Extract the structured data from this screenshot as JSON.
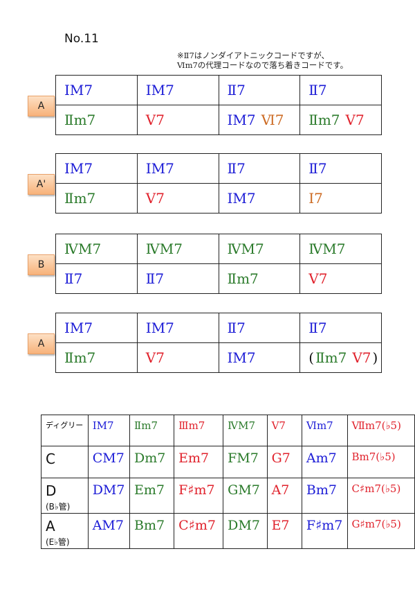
{
  "title": "No.11",
  "note": [
    "※Ⅱ7はノンダイアトニックコードですが、",
    "Ⅵm7の代理コードなので落ち着きコードです。"
  ],
  "colors": {
    "blue": "#1c1cd6",
    "green": "#2a7a2a",
    "red": "#e0222c",
    "orange": "#cc6a22",
    "label_bg": "#f9c495"
  },
  "sections": [
    {
      "label": "A",
      "rows": [
        [
          [
            [
              "ⅠM7",
              "blue"
            ]
          ],
          [
            [
              "ⅠM7",
              "blue"
            ]
          ],
          [
            [
              "Ⅱ7",
              "blue"
            ]
          ],
          [
            [
              "Ⅱ7",
              "blue"
            ]
          ]
        ],
        [
          [
            [
              "Ⅱm7",
              "green"
            ]
          ],
          [
            [
              "Ⅴ7",
              "red"
            ]
          ],
          [
            [
              "ⅠM7",
              "blue"
            ],
            [
              "Ⅵ7",
              "orange"
            ]
          ],
          [
            [
              "Ⅱm7",
              "green"
            ],
            [
              "Ⅴ7",
              "red"
            ]
          ]
        ]
      ]
    },
    {
      "label": "A'",
      "rows": [
        [
          [
            [
              "ⅠM7",
              "blue"
            ]
          ],
          [
            [
              "ⅠM7",
              "blue"
            ]
          ],
          [
            [
              "Ⅱ7",
              "blue"
            ]
          ],
          [
            [
              "Ⅱ7",
              "blue"
            ]
          ]
        ],
        [
          [
            [
              "Ⅱm7",
              "green"
            ]
          ],
          [
            [
              "Ⅴ7",
              "red"
            ]
          ],
          [
            [
              "ⅠM7",
              "blue"
            ]
          ],
          [
            [
              "Ⅰ7",
              "orange"
            ]
          ]
        ]
      ]
    },
    {
      "label": "B",
      "rows": [
        [
          [
            [
              "ⅣM7",
              "green"
            ]
          ],
          [
            [
              "ⅣM7",
              "green"
            ]
          ],
          [
            [
              "ⅣM7",
              "green"
            ]
          ],
          [
            [
              "ⅣM7",
              "green"
            ]
          ]
        ],
        [
          [
            [
              "Ⅱ7",
              "blue"
            ]
          ],
          [
            [
              "Ⅱ7",
              "blue"
            ]
          ],
          [
            [
              "Ⅱm7",
              "green"
            ]
          ],
          [
            [
              "Ⅴ7",
              "red"
            ]
          ]
        ]
      ]
    },
    {
      "label": "A",
      "rows": [
        [
          [
            [
              "ⅠM7",
              "blue"
            ]
          ],
          [
            [
              "ⅠM7",
              "blue"
            ]
          ],
          [
            [
              "Ⅱ7",
              "blue"
            ]
          ],
          [
            [
              "Ⅱ7",
              "blue"
            ]
          ]
        ],
        [
          [
            [
              "Ⅱm7",
              "green"
            ]
          ],
          [
            [
              "Ⅴ7",
              "red"
            ]
          ],
          [
            [
              "ⅠM7",
              "blue"
            ]
          ],
          [
            [
              "(",
              "black"
            ],
            [
              "Ⅱm7",
              "green"
            ],
            [
              "Ⅴ7",
              "red"
            ],
            [
              ")",
              "black"
            ]
          ]
        ]
      ]
    }
  ],
  "degree_table": {
    "header_label": "ディグリー",
    "headers": [
      [
        "ⅠM7",
        "blue"
      ],
      [
        "Ⅱm7",
        "green"
      ],
      [
        "Ⅲm7",
        "red"
      ],
      [
        "ⅣM7",
        "green"
      ],
      [
        "Ⅴ7",
        "red"
      ],
      [
        "Ⅵm7",
        "blue"
      ],
      [
        "Ⅶm7(♭5)",
        "red"
      ]
    ],
    "rows": [
      {
        "key": "C",
        "sub": "",
        "chords": [
          "CM7",
          "Dm7",
          "Em7",
          "FM7",
          "G7",
          "Am7",
          "Bm7(♭5)"
        ]
      },
      {
        "key": "D",
        "sub": "(B♭管)",
        "chords": [
          "DM7",
          "Em7",
          "F♯m7",
          "GM7",
          "A7",
          "Bm7",
          "C♯m7(♭5)"
        ]
      },
      {
        "key": "A",
        "sub": "(E♭管)",
        "chords": [
          "AM7",
          "Bm7",
          "C♯m7",
          "DM7",
          "E7",
          "F♯m7",
          "G♯m7(♭5)"
        ]
      }
    ]
  }
}
